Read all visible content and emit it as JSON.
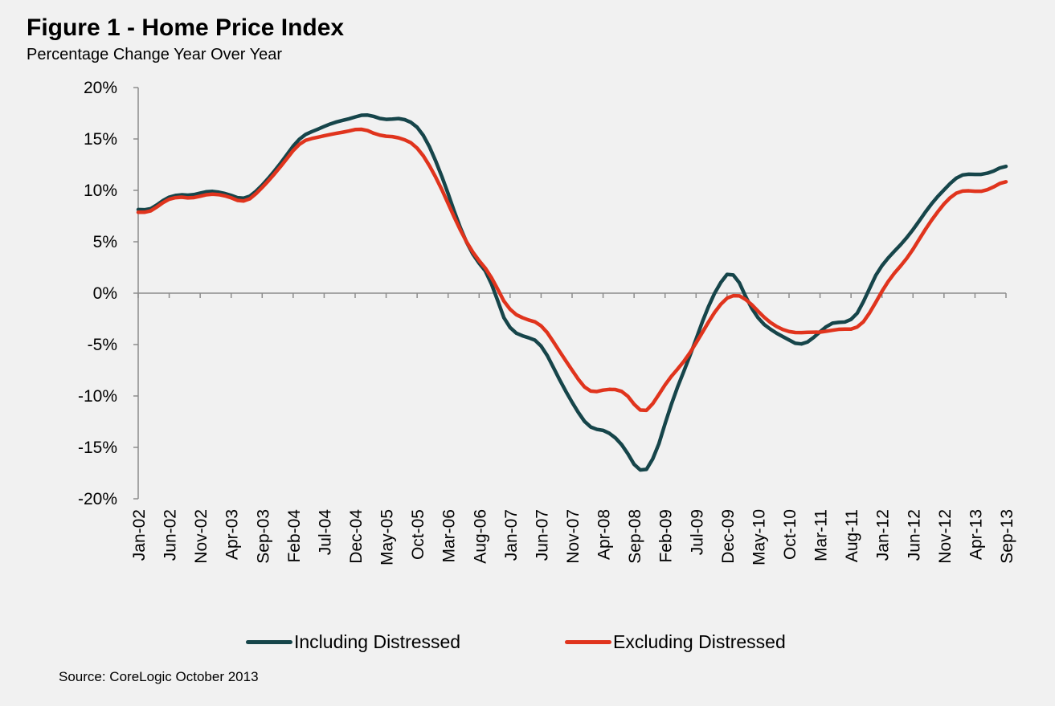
{
  "chart_data": {
    "type": "line",
    "title": "Figure 1 - Home Price Index",
    "subtitle": "Percentage Change Year Over Year",
    "xlabel": "",
    "ylabel": "",
    "ylim": [
      -20,
      20
    ],
    "yticks": [
      20,
      15,
      10,
      5,
      0,
      -5,
      -10,
      -15,
      -20
    ],
    "ytick_labels": [
      "20%",
      "15%",
      "10%",
      "5%",
      "0%",
      "-5%",
      "-10%",
      "-15%",
      "-20%"
    ],
    "x_start": "Jan-02",
    "num_points": 141,
    "categories": [
      "Jan-02",
      "Jun-02",
      "Nov-02",
      "Apr-03",
      "Sep-03",
      "Feb-04",
      "Jul-04",
      "Dec-04",
      "May-05",
      "Oct-05",
      "Mar-06",
      "Aug-06",
      "Jan-07",
      "Jun-07",
      "Nov-07",
      "Apr-08",
      "Sep-08",
      "Feb-09",
      "Jul-09",
      "Dec-09",
      "May-10",
      "Oct-10",
      "Mar-11",
      "Aug-11",
      "Jan-12",
      "Jun-12",
      "Nov-12",
      "Apr-13",
      "Sep-13"
    ],
    "grid": false,
    "legend_position": "bottom",
    "series": [
      {
        "name": "Including Distressed",
        "color": "#16454a",
        "knots": [
          [
            0,
            8.3
          ],
          [
            2,
            7.8
          ],
          [
            5,
            9.0
          ],
          [
            8,
            9.6
          ],
          [
            12,
            9.5
          ],
          [
            15,
            10.0
          ],
          [
            19,
            9.7
          ],
          [
            23,
            9.0
          ],
          [
            26,
            10.1
          ],
          [
            30,
            12.2
          ],
          [
            35,
            15.3
          ],
          [
            38,
            15.8
          ],
          [
            42,
            16.6
          ],
          [
            46,
            17.0
          ],
          [
            49,
            17.5
          ],
          [
            53,
            16.8
          ],
          [
            57,
            17.1
          ],
          [
            61,
            16.0
          ],
          [
            65,
            12.0
          ],
          [
            70,
            5.5
          ],
          [
            73,
            3.0
          ],
          [
            76,
            1.7
          ],
          [
            78,
            -2.0
          ],
          [
            80,
            -3.5
          ],
          [
            83,
            -4.3
          ],
          [
            85,
            -4.3
          ],
          [
            87,
            -5.0
          ],
          [
            92,
            -9.5
          ],
          [
            97,
            -13.2
          ],
          [
            101,
            -13.3
          ],
          [
            105,
            -15.0
          ],
          [
            108,
            -17.8
          ],
          [
            111,
            -16.5
          ],
          [
            115,
            -10.5
          ],
          [
            119,
            -6.0
          ],
          [
            123,
            -1.0
          ],
          [
            126,
            1.5
          ],
          [
            128,
            2.6
          ],
          [
            130,
            0.5
          ],
          [
            133,
            -2.3
          ],
          [
            136,
            -3.5
          ],
          [
            140,
            -4.5
          ],
          [
            143,
            -5.2
          ],
          [
            147,
            -3.8
          ],
          [
            149,
            -2.8
          ],
          [
            151,
            -2.8
          ],
          [
            153,
            -3.0
          ],
          [
            156,
            -1.5
          ],
          [
            158,
            1.2
          ],
          [
            161,
            3.2
          ],
          [
            165,
            5.0
          ],
          [
            168,
            6.8
          ],
          [
            171,
            8.8
          ],
          [
            174,
            10.2
          ],
          [
            176,
            11.2
          ],
          [
            178,
            11.7
          ],
          [
            180,
            11.5
          ],
          [
            183,
            11.6
          ],
          [
            185,
            12.0
          ],
          [
            187,
            12.5
          ]
        ]
      },
      {
        "name": "Excluding Distressed",
        "color": "#e0341d",
        "knots": [
          [
            0,
            8.0
          ],
          [
            2,
            7.6
          ],
          [
            5,
            8.8
          ],
          [
            8,
            9.4
          ],
          [
            12,
            9.2
          ],
          [
            15,
            9.7
          ],
          [
            19,
            9.5
          ],
          [
            23,
            8.7
          ],
          [
            26,
            9.9
          ],
          [
            30,
            11.9
          ],
          [
            35,
            14.8
          ],
          [
            38,
            15.1
          ],
          [
            42,
            15.5
          ],
          [
            46,
            15.8
          ],
          [
            48,
            16.1
          ],
          [
            52,
            15.3
          ],
          [
            56,
            15.2
          ],
          [
            60,
            14.4
          ],
          [
            64,
            11.5
          ],
          [
            70,
            5.5
          ],
          [
            73,
            3.3
          ],
          [
            76,
            1.9
          ],
          [
            78,
            -0.3
          ],
          [
            80,
            -1.7
          ],
          [
            83,
            -2.5
          ],
          [
            85,
            -2.7
          ],
          [
            87,
            -3.0
          ],
          [
            92,
            -6.5
          ],
          [
            97,
            -9.8
          ],
          [
            101,
            -9.3
          ],
          [
            104,
            -9.4
          ],
          [
            106,
            -10.0
          ],
          [
            108,
            -11.8
          ],
          [
            110,
            -11.5
          ],
          [
            114,
            -8.5
          ],
          [
            118,
            -6.5
          ],
          [
            122,
            -3.5
          ],
          [
            125,
            -1.2
          ],
          [
            128,
            0.0
          ],
          [
            131,
            -0.5
          ],
          [
            134,
            -2.0
          ],
          [
            137,
            -3.2
          ],
          [
            141,
            -3.9
          ],
          [
            144,
            -3.8
          ],
          [
            148,
            -3.8
          ],
          [
            150,
            -3.5
          ],
          [
            152,
            -3.5
          ],
          [
            155,
            -3.5
          ],
          [
            157,
            -2.5
          ],
          [
            160,
            0.0
          ],
          [
            162,
            1.5
          ],
          [
            166,
            3.5
          ],
          [
            169,
            5.8
          ],
          [
            172,
            7.8
          ],
          [
            175,
            9.4
          ],
          [
            177,
            10.0
          ],
          [
            179,
            10.0
          ],
          [
            181,
            9.8
          ],
          [
            183,
            10.0
          ],
          [
            185,
            10.5
          ],
          [
            187,
            11.0
          ]
        ]
      }
    ]
  },
  "legend": {
    "series_1": "Including Distressed",
    "series_2": "Excluding Distressed"
  },
  "source": "Source: CoreLogic  October  2013"
}
